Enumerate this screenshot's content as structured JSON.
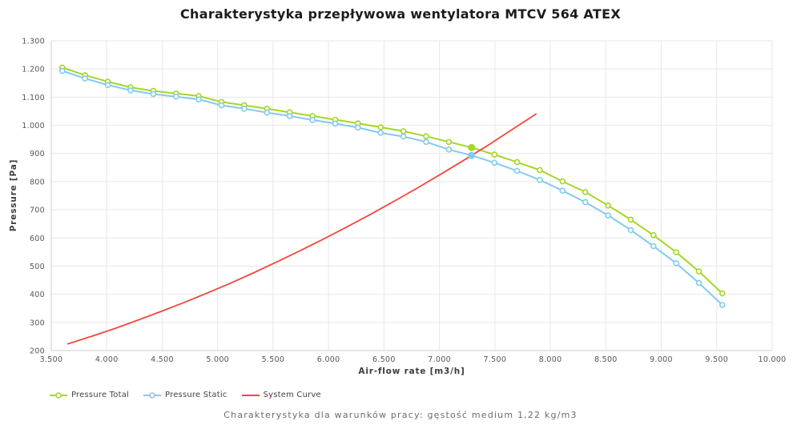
{
  "title": "Charakterystyka przepływowa wentylatora MTCV 564 ATEX",
  "footer": "Charakterystyka dla warunków pracy: gęstość medium 1,22 kg/m3",
  "colors": {
    "pressure_total": "#a5d628",
    "pressure_static": "#82cbf0",
    "system_curve": "#f5473d",
    "grid": "#e7e7e7",
    "axis_line": "#cfcfcf",
    "tick_text": "#555555",
    "title_text": "#1c1c1c",
    "footer_text": "#6b6b6b"
  },
  "chart_data": {
    "type": "line",
    "title": "Charakterystyka przepływowa wentylatora MTCV 564 ATEX",
    "xlabel": "Air-flow rate [m3/h]",
    "ylabel": "Pressure [Pa]",
    "xlim": [
      3500,
      10000
    ],
    "ylim": [
      200,
      1300
    ],
    "grid": true,
    "legend_position": "bottom-left",
    "x_ticks": [
      {
        "v": 3500,
        "label": "3.500"
      },
      {
        "v": 4000,
        "label": "4.000"
      },
      {
        "v": 4500,
        "label": "4.500"
      },
      {
        "v": 5000,
        "label": "5.000"
      },
      {
        "v": 5500,
        "label": "5.500"
      },
      {
        "v": 6000,
        "label": "6.000"
      },
      {
        "v": 6500,
        "label": "6.500"
      },
      {
        "v": 7000,
        "label": "7.000"
      },
      {
        "v": 7500,
        "label": "7.500"
      },
      {
        "v": 8000,
        "label": "8.000"
      },
      {
        "v": 8500,
        "label": "8.500"
      },
      {
        "v": 9000,
        "label": "9.000"
      },
      {
        "v": 9500,
        "label": "9.500"
      },
      {
        "v": 10000,
        "label": "10.000"
      }
    ],
    "y_ticks": [
      {
        "v": 200,
        "label": "200"
      },
      {
        "v": 300,
        "label": "300"
      },
      {
        "v": 400,
        "label": "400"
      },
      {
        "v": 500,
        "label": "500"
      },
      {
        "v": 600,
        "label": "600"
      },
      {
        "v": 700,
        "label": "700"
      },
      {
        "v": 800,
        "label": "800"
      },
      {
        "v": 900,
        "label": "900"
      },
      {
        "v": 1000,
        "label": "1.000"
      },
      {
        "v": 1100,
        "label": "1.100"
      },
      {
        "v": 1200,
        "label": "1.200"
      },
      {
        "v": 1300,
        "label": "1.300"
      }
    ],
    "series": [
      {
        "id": "pressure-total",
        "name": "Pressure Total",
        "color": "#a5d628",
        "marker": "circle",
        "x": [
          3600,
          3805,
          4010,
          4215,
          4420,
          4625,
          4830,
          5035,
          5240,
          5445,
          5650,
          5855,
          6060,
          6265,
          6470,
          6675,
          6880,
          7085,
          7290,
          7495,
          7700,
          7905,
          8110,
          8315,
          8520,
          8725,
          8930,
          9135,
          9340,
          9550
        ],
        "y": [
          1205,
          1178,
          1155,
          1135,
          1122,
          1113,
          1104,
          1083,
          1071,
          1059,
          1046,
          1033,
          1020,
          1007,
          993,
          979,
          961,
          941,
          921,
          896,
          869,
          841,
          801,
          763,
          715,
          665,
          610,
          549,
          481,
          403
        ]
      },
      {
        "id": "pressure-static",
        "name": "Pressure Static",
        "color": "#82cbf0",
        "marker": "circle",
        "x": [
          3600,
          3805,
          4010,
          4215,
          4420,
          4625,
          4830,
          5035,
          5240,
          5445,
          5650,
          5855,
          6060,
          6265,
          6470,
          6675,
          6880,
          7085,
          7290,
          7495,
          7700,
          7905,
          8110,
          8315,
          8520,
          8725,
          8930,
          9135,
          9340,
          9550
        ],
        "y": [
          1193,
          1166,
          1143,
          1124,
          1111,
          1102,
          1092,
          1071,
          1059,
          1045,
          1033,
          1019,
          1006,
          992,
          973,
          960,
          941,
          914,
          893,
          867,
          838,
          806,
          768,
          727,
          680,
          628,
          571,
          510,
          440,
          362
        ]
      },
      {
        "id": "system-curve",
        "name": "System Curve",
        "color": "#f5473d",
        "marker": "none",
        "x": [
          3650,
          3860,
          4070,
          4280,
          4490,
          4700,
          4910,
          5120,
          5330,
          5540,
          5750,
          5960,
          6170,
          6380,
          6590,
          6800,
          7010,
          7220,
          7430,
          7640,
          7870
        ],
        "y": [
          224,
          250,
          278,
          308,
          339,
          371,
          405,
          440,
          477,
          516,
          556,
          597,
          640,
          684,
          730,
          777,
          826,
          876,
          927,
          981,
          1040
        ]
      }
    ],
    "operating_point": {
      "air_flow": 7290,
      "pressure_total": 921,
      "pressure_static": 893
    }
  }
}
